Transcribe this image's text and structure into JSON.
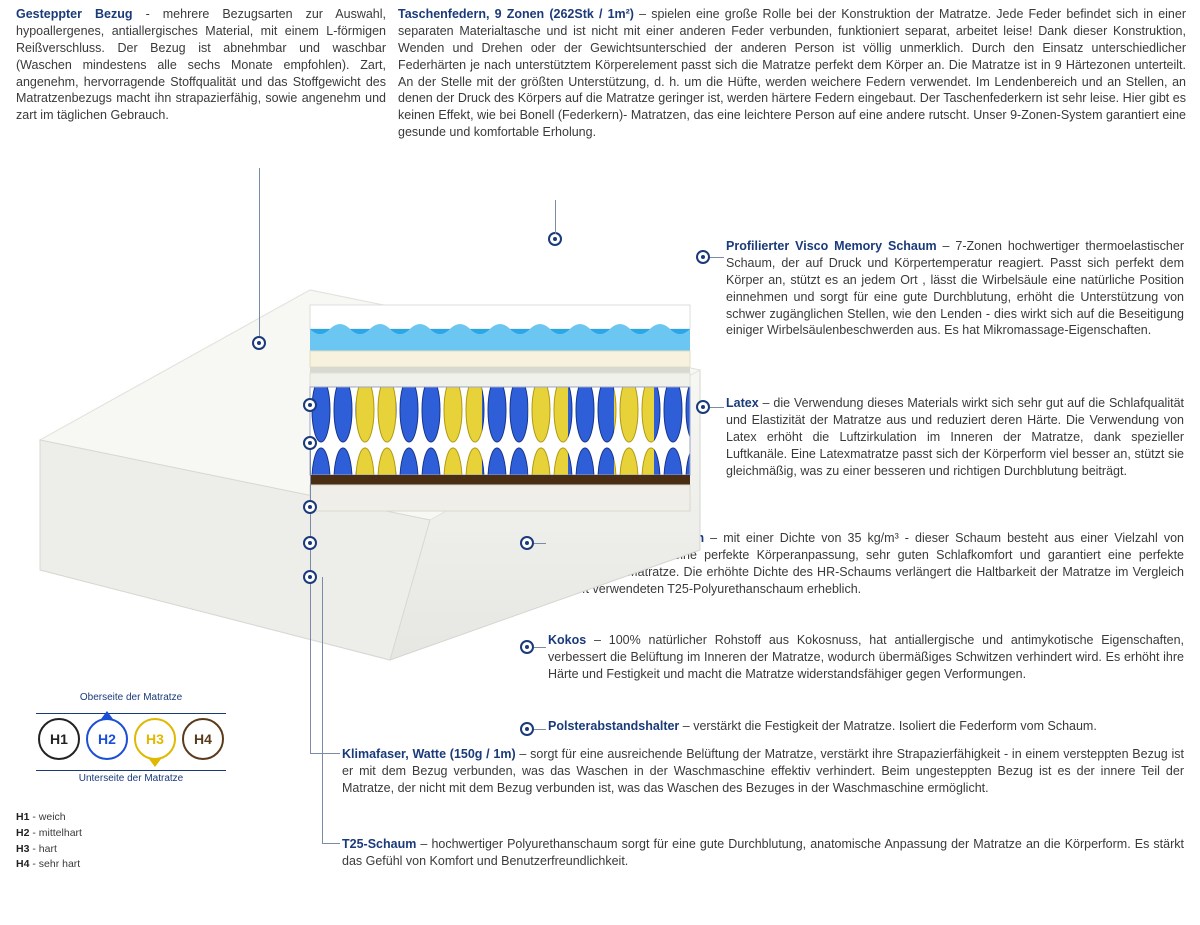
{
  "colors": {
    "label": "#1a3a7a",
    "text": "#3a3a3a",
    "leader": "#7a8aa8",
    "h1": "#222222",
    "h2": "#1a4fd6",
    "h3": "#e0b800",
    "h4": "#5b3a1a",
    "cover": "#f3f3f0",
    "foam_white": "#ffffff",
    "visco_blue": "#2aa6e8",
    "latex_cream": "#f6f2de",
    "spring_blue": "#2e5fd8",
    "spring_yellow": "#e7d23a",
    "coco": "#4a2e14",
    "base_foam": "#e8e8e4"
  },
  "top": {
    "left": {
      "label": "Gesteppter Bezug",
      "text": " - mehrere Bezugsarten zur Auswahl, hypoallergenes, antiallergisches Material, mit einem L-förmigen Reißverschluss. Der Bezug ist abnehmbar und waschbar (Waschen mindestens alle sechs Monate empfohlen). Zart, angenehm, hervorragende Stoffqualität und das Stoffgewicht des Matratzenbezugs macht ihn strapazierfähig, sowie angenehm und zart im täglichen Gebrauch."
    },
    "right": {
      "label": "Taschenfedern, 9 Zonen (262Stk / 1m²)",
      "text": " – spielen eine große Rolle bei der Konstruktion der Matratze. Jede Feder befindet sich in einer separaten Materialtasche und ist nicht mit einer anderen Feder verbunden, funktioniert separat, arbeitet leise! Dank dieser Konstruktion, Wenden und Drehen oder der Gewichtsunterschied der anderen Person ist völlig unmerklich. Durch den Einsatz unterschiedlicher Federhärten je nach unterstütztem Körperelement passt sich die Matratze perfekt dem Körper an. Die Matratze ist in 9 Härtezonen unterteilt. An der Stelle mit der größten Unterstützung, d. h. um die Hüfte, werden weichere Federn verwendet. Im Lendenbereich und an Stellen, an denen der Druck des Körpers auf die Matratze geringer ist, werden härtere Federn eingebaut. Der Taschenfederkern ist sehr leise. Hier gibt es keinen Effekt, wie bei Bonell (Federkern)- Matratzen, das eine leichtere Person auf eine andere rutscht. Unser 9-Zonen-System garantiert eine gesunde und komfortable Erholung."
    }
  },
  "sections": {
    "visco": {
      "label": "Profilierter Visco Memory Schaum",
      "text": " – 7-Zonen hochwertiger thermoelastischer Schaum, der auf Druck und Körpertemperatur reagiert. Passt sich perfekt dem Körper an, stützt es an jedem Ort , lässt die Wirbelsäule eine natürliche Position einnehmen und sorgt für eine gute Durchblutung, erhöht die Unterstützung von schwer zugänglichen Stellen, wie den Lenden - dies wirkt sich auf die Beseitigung einiger Wirbelsäulenbeschwerden aus. Es hat Mikromassage-Eigenschaften."
    },
    "latex": {
      "label": "Latex",
      "text": " – die Verwendung dieses Materials wirkt sich sehr gut auf die Schlafqualität und Elastizität der Matratze aus und reduziert deren Härte. Die Verwendung von Latex erhöht die Luftzirkulation im Inneren der Matratze, dank spezieller Luftkanäle. Eine Latexmatratze passt sich der Körperform viel besser an, stützt sie gleichmäßig, was zu einer besseren und richtigen Durchblutung beiträgt."
    },
    "hr": {
      "label": "Hochflexibler HR-Schaum",
      "text": " – mit einer Dichte von 35 kg/m³ - dieser Schaum besteht aus einer Vielzahl von Luftblasen, sorgt für eine perfekte Körperanpassung, sehr guten Schlafkomfort und garantiert eine perfekte Belüftung der Matratze. Die erhöhte Dichte des HR-Schaums verlängert die Haltbarkeit der Matratze im Vergleich zum oft verwendeten T25-Polyurethanschaum erheblich."
    },
    "kokos": {
      "label": "Kokos",
      "text": " – 100% natürlicher Rohstoff aus Kokosnuss, hat antiallergische und antimykotische Eigenschaften, verbessert die Belüftung im Inneren der Matratze, wodurch übermäßiges Schwitzen verhindert wird. Es erhöht ihre Härte und Festigkeit und macht die Matratze widerstandsfähiger gegen Verformungen."
    },
    "polster": {
      "label": "Polsterabstandshalter",
      "text": " – verstärkt die Festigkeit der Matratze. Isoliert die Federform vom Schaum."
    },
    "klima": {
      "label": "Klimafaser, Watte (150g / 1m)",
      "text": " – sorgt für eine ausreichende Belüftung der Matratze, verstärkt ihre Strapazierfähigkeit - in einem versteppten Bezug ist er mit dem Bezug verbunden, was das Waschen in der Waschmaschine effektiv verhindert. Beim ungesteppten Bezug ist es der innere Teil der Matratze, der nicht mit dem Bezug verbunden ist, was das Waschen des Bezuges in der Waschmaschine ermöglicht."
    },
    "t25": {
      "label": "T25-Schaum",
      "text": " – hochwertiger Polyurethanschaum sorgt für eine gute Durchblutung, anatomische Anpassung der Matratze an die Körperform. Es stärkt das Gefühl von Komfort und Benutzerfreundlichkeit."
    }
  },
  "legend": {
    "top_caption": "Oberseite der Matratze",
    "bottom_caption": "Unterseite der Matratze",
    "items": [
      {
        "code": "H1",
        "color": "#222222",
        "arrow": "none"
      },
      {
        "code": "H2",
        "color": "#1a4fd6",
        "arrow": "up"
      },
      {
        "code": "H3",
        "color": "#e0b800",
        "arrow": "down"
      },
      {
        "code": "H4",
        "color": "#5b3a1a",
        "arrow": "none"
      }
    ],
    "defs": [
      {
        "code": "H1",
        "text": " - weich"
      },
      {
        "code": "H2",
        "text": " - mittelhart"
      },
      {
        "code": "H3",
        "text": " - hart"
      },
      {
        "code": "H4",
        "text": " - sehr hart"
      }
    ]
  }
}
